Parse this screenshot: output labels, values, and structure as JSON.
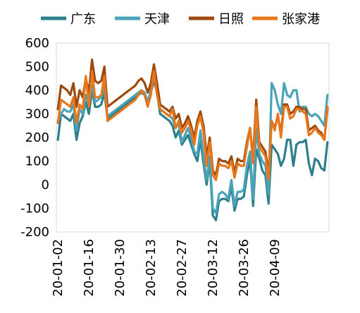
{
  "chart_data": {
    "type": "line",
    "title": "",
    "xlabel": "",
    "ylabel": "",
    "ylim": [
      -200,
      600
    ],
    "yticks": [
      -200,
      -100,
      0,
      100,
      200,
      300,
      400,
      500,
      600
    ],
    "x_tick_labels": [
      "20-01-02",
      "20-01-16",
      "20-01-30",
      "20-02-13",
      "20-02-27",
      "20-03-12",
      "20-03-26",
      "20-04-09"
    ],
    "grid": {
      "horizontal": false,
      "vertical": false,
      "frame": true
    },
    "legend_position": "top",
    "series": [
      {
        "name": "广东",
        "color": "#2E7F8C",
        "values": [
          190,
          300,
          290,
          280,
          270,
          300,
          190,
          260,
          290,
          350,
          300,
          400,
          330,
          330,
          340,
          390,
          280,
          290,
          300,
          310,
          320,
          330,
          340,
          350,
          360,
          370,
          380,
          390,
          380,
          340,
          390,
          440,
          390,
          300,
          290,
          280,
          270,
          250,
          200,
          230,
          170,
          190,
          210,
          170,
          130,
          100,
          190,
          90,
          0,
          100,
          -130,
          -150,
          -70,
          -60,
          -60,
          -70,
          -10,
          -110,
          -60,
          -60,
          -50,
          40,
          110,
          -90,
          150,
          110,
          60,
          40,
          -80,
          170,
          150,
          130,
          80,
          110,
          190,
          190,
          80,
          170,
          180,
          180,
          190,
          90,
          40,
          110,
          100,
          70,
          60,
          180
        ]
      },
      {
        "name": "天津",
        "color": "#4AA3B8",
        "values": [
          270,
          300,
          320,
          310,
          310,
          340,
          230,
          320,
          300,
          380,
          340,
          420,
          350,
          360,
          370,
          410,
          290,
          300,
          310,
          320,
          330,
          340,
          350,
          360,
          370,
          380,
          390,
          400,
          390,
          350,
          400,
          460,
          400,
          320,
          310,
          300,
          290,
          280,
          240,
          260,
          180,
          210,
          240,
          200,
          140,
          130,
          230,
          120,
          20,
          120,
          -100,
          -120,
          -40,
          -30,
          -40,
          -60,
          20,
          -90,
          -30,
          -30,
          -20,
          80,
          140,
          -60,
          240,
          130,
          100,
          80,
          -40,
          430,
          400,
          340,
          300,
          430,
          380,
          370,
          400,
          400,
          310,
          330,
          330,
          300,
          290,
          300,
          290,
          270,
          250,
          380
        ]
      },
      {
        "name": "日照",
        "color": "#9C4A0E",
        "values": [
          320,
          420,
          410,
          400,
          380,
          430,
          330,
          400,
          370,
          450,
          390,
          530,
          440,
          430,
          440,
          500,
          330,
          340,
          350,
          360,
          370,
          380,
          390,
          400,
          410,
          420,
          440,
          450,
          430,
          390,
          430,
          510,
          430,
          340,
          330,
          320,
          310,
          330,
          280,
          300,
          240,
          260,
          290,
          250,
          200,
          270,
          310,
          250,
          120,
          200,
          60,
          40,
          110,
          100,
          100,
          90,
          120,
          50,
          110,
          100,
          100,
          180,
          240,
          110,
          360,
          180,
          160,
          140,
          50,
          270,
          240,
          290,
          220,
          340,
          340,
          300,
          310,
          330,
          330,
          320,
          320,
          230,
          240,
          250,
          230,
          220,
          190,
          320
        ]
      },
      {
        "name": "张家港",
        "color": "#E8761A",
        "values": [
          260,
          360,
          350,
          340,
          330,
          370,
          260,
          340,
          320,
          460,
          330,
          480,
          370,
          370,
          380,
          460,
          270,
          280,
          290,
          300,
          310,
          320,
          330,
          340,
          350,
          360,
          380,
          400,
          380,
          330,
          380,
          480,
          380,
          320,
          310,
          300,
          290,
          320,
          240,
          270,
          220,
          240,
          270,
          230,
          170,
          250,
          290,
          220,
          80,
          180,
          40,
          20,
          90,
          80,
          80,
          70,
          100,
          30,
          90,
          80,
          80,
          160,
          240,
          90,
          330,
          160,
          140,
          120,
          20,
          270,
          230,
          300,
          200,
          330,
          330,
          280,
          290,
          320,
          320,
          310,
          300,
          210,
          220,
          240,
          220,
          210,
          190,
          330
        ]
      }
    ]
  }
}
